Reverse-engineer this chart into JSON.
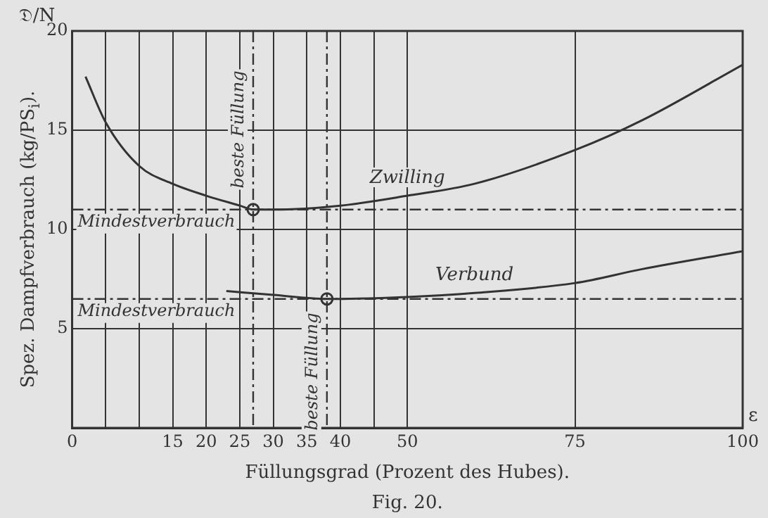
{
  "chart_data": {
    "type": "line",
    "xlabel": "Füllungsgrad (Prozent des Hubes).",
    "ylabel": "Spez. Dampfverbrauch (kg/PS$_{i}$).",
    "annotations": [
      "𝔇/N",
      "ε",
      "Fig. 20."
    ],
    "series": [
      {
        "name": "Zwilling",
        "color": "#333333",
        "x": [
          2,
          5,
          10,
          15,
          20,
          25,
          27,
          30,
          40,
          50,
          60,
          75,
          85,
          100
        ],
        "values": [
          17.7,
          15.4,
          13.2,
          12.3,
          11.7,
          11.2,
          11.0,
          11.0,
          11.2,
          11.7,
          12.3,
          14.0,
          15.5,
          18.3
        ]
      },
      {
        "name": "Verbund",
        "color": "#333333",
        "x": [
          23,
          30,
          38,
          50,
          60,
          75,
          85,
          100
        ],
        "values": [
          6.9,
          6.7,
          6.5,
          6.6,
          6.8,
          7.3,
          8.0,
          8.9
        ]
      },
      {
        "type": "scatter",
        "color": "#333333",
        "marker": "circle",
        "x": [
          27,
          38
        ],
        "values": [
          11.0,
          6.5
        ]
      }
    ],
    "ref_lines": [
      {
        "axis": "y",
        "value": 11.0,
        "label": "Mindestverbrauch",
        "line_style": "dashed"
      },
      {
        "axis": "x",
        "value": 27,
        "label": "beste Füllung",
        "line_style": "dashed"
      },
      {
        "axis": "y",
        "value": 6.5,
        "label": "Mindestverbrauch",
        "line_style": "dashed"
      },
      {
        "axis": "x",
        "value": 38,
        "label": "beste Füllung",
        "line_style": "dashed"
      }
    ],
    "xlim": [
      0,
      100
    ],
    "xticks": [
      0,
      {
        "value": 5,
        "label": null
      },
      {
        "value": 10,
        "label": null
      },
      15,
      20,
      25,
      30,
      35,
      40,
      {
        "value": 45,
        "label": null
      },
      50,
      75,
      100
    ],
    "ylim": [
      0,
      20
    ],
    "yticks": [
      {
        "value": 0,
        "label": null
      },
      5,
      10,
      15,
      20
    ],
    "grid": true,
    "legend": false
  }
}
